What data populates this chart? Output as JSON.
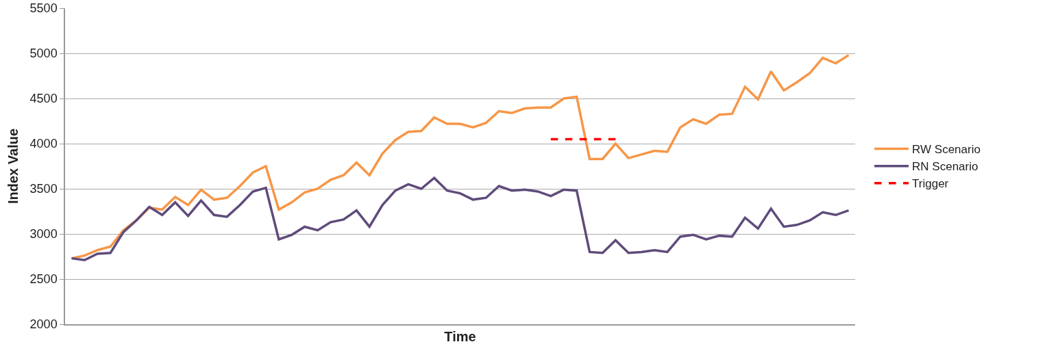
{
  "chart_data": {
    "type": "line",
    "xlabel": "Time",
    "ylabel": "Index Value",
    "categories": [
      null,
      null,
      null,
      null,
      null,
      null,
      null,
      null,
      null,
      null,
      null,
      null,
      null,
      null,
      null,
      null,
      null,
      null,
      null,
      null,
      null,
      null,
      null,
      null,
      null,
      null,
      null,
      null,
      null,
      null,
      null,
      null,
      null,
      null,
      null,
      null,
      null,
      null,
      null,
      null,
      null,
      null,
      null,
      null,
      null,
      null,
      null,
      null,
      null,
      null,
      null,
      null,
      null,
      null,
      null,
      null,
      null,
      null,
      null,
      null,
      null
    ],
    "series": [
      {
        "name": "RW Scenario",
        "color": "#f79646",
        "line_style": "solid",
        "values": [
          2730,
          2760,
          2820,
          2860,
          3040,
          3150,
          3290,
          3270,
          3410,
          3320,
          3490,
          3380,
          3400,
          3530,
          3680,
          3750,
          3270,
          3350,
          3460,
          3500,
          3600,
          3650,
          3790,
          3650,
          3890,
          4040,
          4130,
          4140,
          4290,
          4220,
          4220,
          4180,
          4230,
          4360,
          4340,
          4390,
          4400,
          4400,
          4500,
          4520,
          3830,
          3830,
          4000,
          3840,
          3880,
          3920,
          3910,
          4180,
          4270,
          4220,
          4320,
          4330,
          4630,
          4490,
          4800,
          4590,
          4680,
          4780,
          4950,
          4890,
          4980
        ]
      },
      {
        "name": "RN Scenario",
        "color": "#5f4b7b",
        "line_style": "solid",
        "values": [
          2730,
          2710,
          2780,
          2790,
          3020,
          3150,
          3300,
          3210,
          3350,
          3200,
          3370,
          3210,
          3190,
          3320,
          3470,
          3510,
          2940,
          2990,
          3080,
          3040,
          3130,
          3160,
          3260,
          3080,
          3320,
          3480,
          3550,
          3500,
          3620,
          3480,
          3450,
          3380,
          3400,
          3530,
          3480,
          3490,
          3470,
          3420,
          3490,
          3480,
          2800,
          2790,
          2930,
          2790,
          2800,
          2820,
          2800,
          2970,
          2990,
          2940,
          2980,
          2970,
          3180,
          3060,
          3280,
          3080,
          3100,
          3150,
          3240,
          3210,
          3260
        ]
      },
      {
        "name": "Trigger",
        "color": "#ff0000",
        "line_style": "dashed",
        "values": [
          null,
          null,
          null,
          null,
          null,
          null,
          null,
          null,
          null,
          null,
          null,
          null,
          null,
          null,
          null,
          null,
          null,
          null,
          null,
          null,
          null,
          null,
          null,
          null,
          null,
          null,
          null,
          null,
          null,
          null,
          null,
          null,
          null,
          null,
          null,
          null,
          null,
          4050,
          4050,
          4050,
          4050,
          4050,
          4050,
          null,
          null,
          null,
          null,
          null,
          null,
          null,
          null,
          null,
          null,
          null,
          null,
          null,
          null,
          null,
          null,
          null,
          null
        ]
      }
    ],
    "ylim": [
      2000,
      5500
    ],
    "yticks": [
      2000,
      2500,
      3000,
      3500,
      4000,
      4500,
      5000,
      5500
    ],
    "grid": "y",
    "legend": "right",
    "marker": "none",
    "tick_labels": "y"
  }
}
